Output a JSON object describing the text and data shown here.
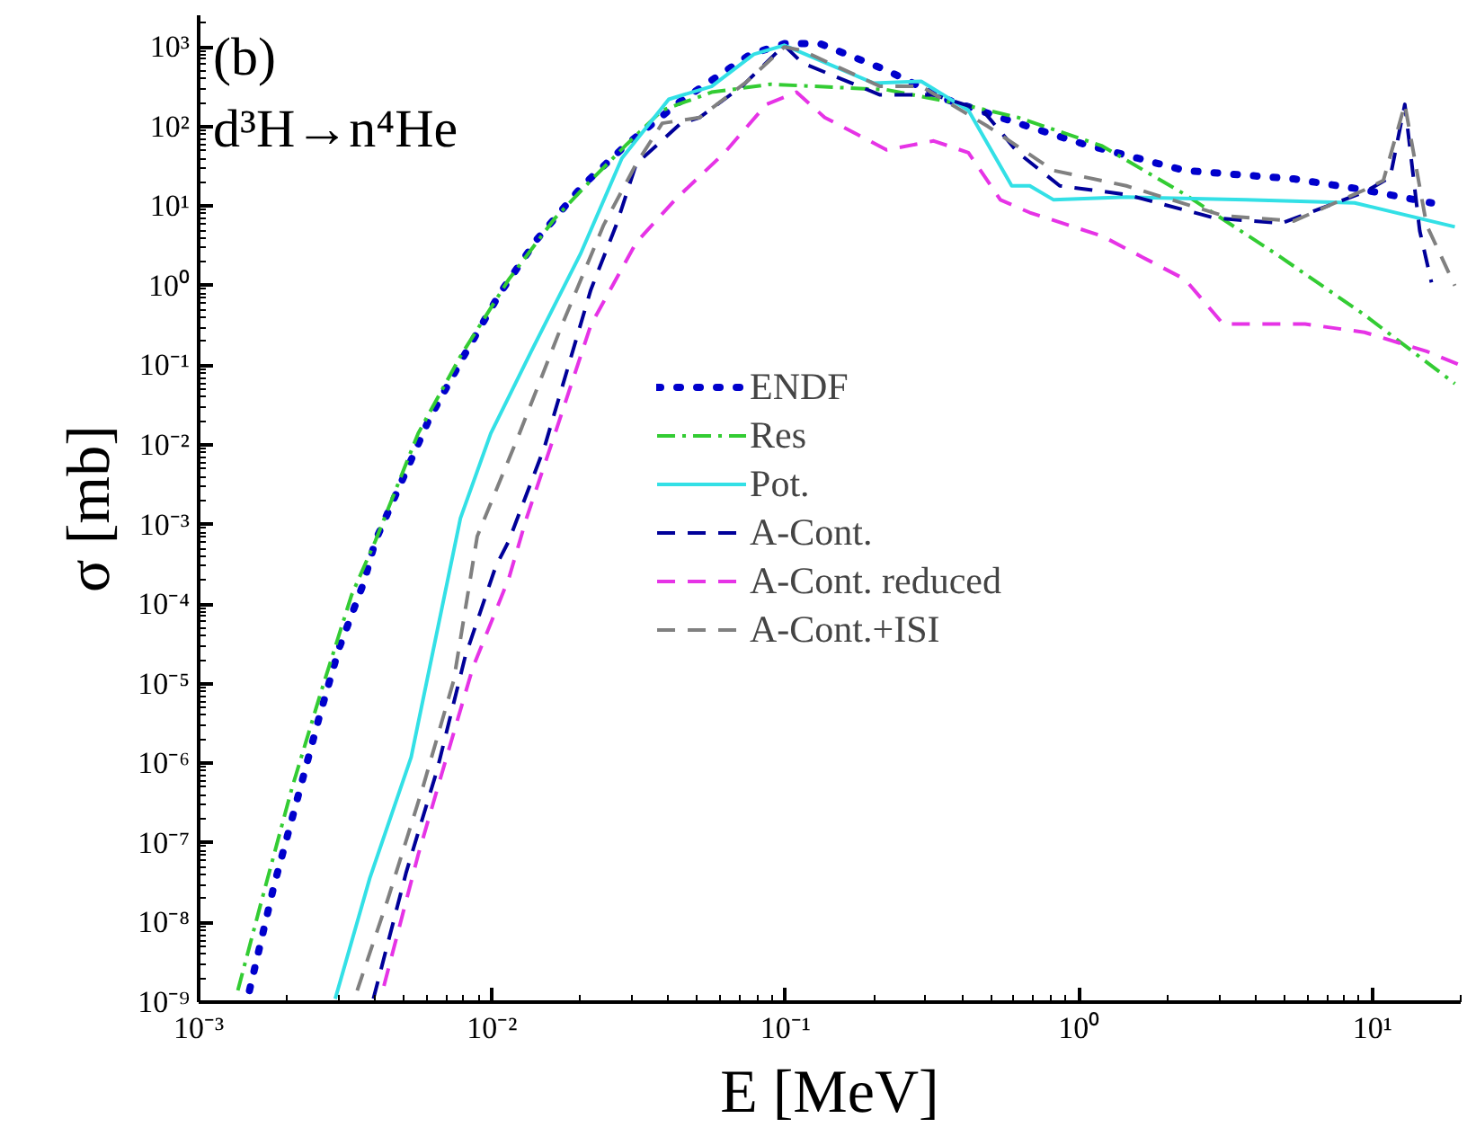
{
  "chart_data": {
    "type": "line",
    "title": "(b)",
    "subtitle": "d³H→n⁴He",
    "xlabel": "E [MeV]",
    "ylabel": "σ [mb]",
    "log": "xy",
    "xlim": [
      0.001,
      20
    ],
    "ylim": [
      1e-09,
      2500
    ],
    "xticks": [
      {
        "value": 0.001,
        "label": "10⁻³"
      },
      {
        "value": 0.01,
        "label": "10⁻²"
      },
      {
        "value": 0.1,
        "label": "10⁻¹"
      },
      {
        "value": 1,
        "label": "10⁰"
      },
      {
        "value": 10,
        "label": "10¹"
      }
    ],
    "yticks": [
      {
        "value": 1e-09,
        "label": "10⁻⁹"
      },
      {
        "value": 1e-08,
        "label": "10⁻⁸"
      },
      {
        "value": 1e-07,
        "label": "10⁻⁷"
      },
      {
        "value": 1e-06,
        "label": "10⁻⁶"
      },
      {
        "value": 1e-05,
        "label": "10⁻⁵"
      },
      {
        "value": 0.0001,
        "label": "10⁻⁴"
      },
      {
        "value": 0.001,
        "label": "10⁻³"
      },
      {
        "value": 0.01,
        "label": "10⁻²"
      },
      {
        "value": 0.1,
        "label": "10⁻¹"
      },
      {
        "value": 1,
        "label": "10⁰"
      },
      {
        "value": 10,
        "label": "10¹"
      },
      {
        "value": 100,
        "label": "10²"
      },
      {
        "value": 1000,
        "label": "10³"
      }
    ],
    "grid": false,
    "legend": "center",
    "marker": "none",
    "series": [
      {
        "name": "ENDF",
        "color": "#0000cc",
        "line_style": "dotted",
        "x": [
          0.00149,
          0.00181,
          0.00208,
          0.00258,
          0.00301,
          0.00366,
          0.004,
          0.0061,
          0.008,
          0.0106,
          0.0142,
          0.0203,
          0.0288,
          0.044,
          0.076,
          0.099,
          0.131,
          0.221,
          0.352,
          0.62,
          1.04,
          2.3,
          5.4,
          9.4,
          15.9
        ],
        "values": [
          1.4e-09,
          3e-08,
          2e-07,
          3.9e-06,
          2.8e-05,
          0.00019,
          0.00062,
          0.021,
          0.13,
          0.79,
          3.8,
          18,
          60,
          210,
          810,
          1100,
          1100,
          510,
          220,
          110,
          60,
          28,
          22,
          16,
          11
        ]
      },
      {
        "name": "Res",
        "color": "#33cc33",
        "line_style": "dashdot",
        "x": [
          0.00136,
          0.00164,
          0.00208,
          0.00261,
          0.00332,
          0.004,
          0.0056,
          0.0078,
          0.0114,
          0.0164,
          0.0217,
          0.0288,
          0.038,
          0.056,
          0.089,
          0.221,
          0.4,
          0.62,
          1.2,
          2.3,
          4.7,
          9.4,
          19.1
        ],
        "values": [
          1.4e-09,
          1.9e-08,
          4.9e-07,
          7.8e-06,
          0.00013,
          0.00062,
          0.014,
          0.13,
          1.2,
          7.1,
          21,
          60,
          160,
          270,
          340,
          290,
          190,
          130,
          57,
          14,
          2.5,
          0.43,
          0.059
        ]
      },
      {
        "name": "Pot.",
        "color": "#33e0e6",
        "line_style": "solid",
        "x": [
          0.00292,
          0.00383,
          0.0053,
          0.0078,
          0.0099,
          0.0136,
          0.02,
          0.0277,
          0.04,
          0.056,
          0.078,
          0.099,
          0.2,
          0.29,
          0.42,
          0.59,
          0.68,
          0.82,
          1.45,
          3.7,
          8.7,
          19.1
        ],
        "values": [
          1.1e-09,
          3.6e-08,
          1.2e-06,
          0.0012,
          0.014,
          0.15,
          2.5,
          40,
          220,
          320,
          810,
          1050,
          350,
          370,
          160,
          18,
          18,
          12,
          13,
          12,
          11,
          5.5
        ]
      },
      {
        "name": "A-Cont.",
        "color": "#000099",
        "line_style": "dashed",
        "x": [
          0.00394,
          0.0051,
          0.0065,
          0.0081,
          0.0103,
          0.0114,
          0.0151,
          0.0217,
          0.0265,
          0.031,
          0.044,
          0.051,
          0.071,
          0.099,
          0.114,
          0.21,
          0.32,
          0.47,
          0.62,
          0.86,
          1.45,
          2.9,
          4.9,
          9.4,
          11.5,
          12.9,
          14.5,
          15.9
        ],
        "values": [
          1.1e-09,
          4.3e-08,
          8.3e-07,
          2.2e-05,
          0.0003,
          0.00062,
          0.0095,
          0.89,
          5.8,
          34,
          110,
          130,
          320,
          1050,
          630,
          250,
          250,
          160,
          47,
          18,
          14,
          7.1,
          6.1,
          15,
          23,
          190,
          4.9,
          1.1
        ]
      },
      {
        "name": "A-Cont. reduced",
        "color": "#e633e6",
        "line_style": "dashed",
        "x": [
          0.00428,
          0.0056,
          0.007,
          0.0086,
          0.0114,
          0.0131,
          0.0164,
          0.0217,
          0.031,
          0.042,
          0.062,
          0.086,
          0.109,
          0.136,
          0.221,
          0.32,
          0.42,
          0.54,
          0.68,
          1.2,
          2.3,
          3.1,
          5.9,
          9.4,
          15.3,
          20
        ],
        "values": [
          1.6e-09,
          7.1e-08,
          1.2e-06,
          1.6e-05,
          0.00021,
          0.0012,
          0.014,
          0.32,
          3.5,
          12,
          47,
          190,
          270,
          130,
          51,
          66,
          47,
          12,
          8.3,
          4.2,
          1.2,
          0.33,
          0.33,
          0.26,
          0.15,
          0.1
        ]
      },
      {
        "name": "A-Cont.+ISI",
        "color": "#808080",
        "line_style": "dashed",
        "x": [
          0.00347,
          0.0044,
          0.0058,
          0.0074,
          0.0089,
          0.0124,
          0.0173,
          0.024,
          0.031,
          0.038,
          0.051,
          0.074,
          0.099,
          0.114,
          0.21,
          0.29,
          0.49,
          0.71,
          0.82,
          1.45,
          3.1,
          5.4,
          9.4,
          10.9,
          12.9,
          15.3,
          19.1
        ],
        "values": [
          1.4e-09,
          1.9e-08,
          4.9e-07,
          1.1e-05,
          0.00071,
          0.014,
          0.32,
          5.8,
          34,
          110,
          130,
          370,
          1000,
          900,
          320,
          320,
          100,
          40,
          28,
          18,
          7.6,
          6.5,
          16,
          21,
          190,
          5.8,
          1.0
        ]
      }
    ]
  }
}
